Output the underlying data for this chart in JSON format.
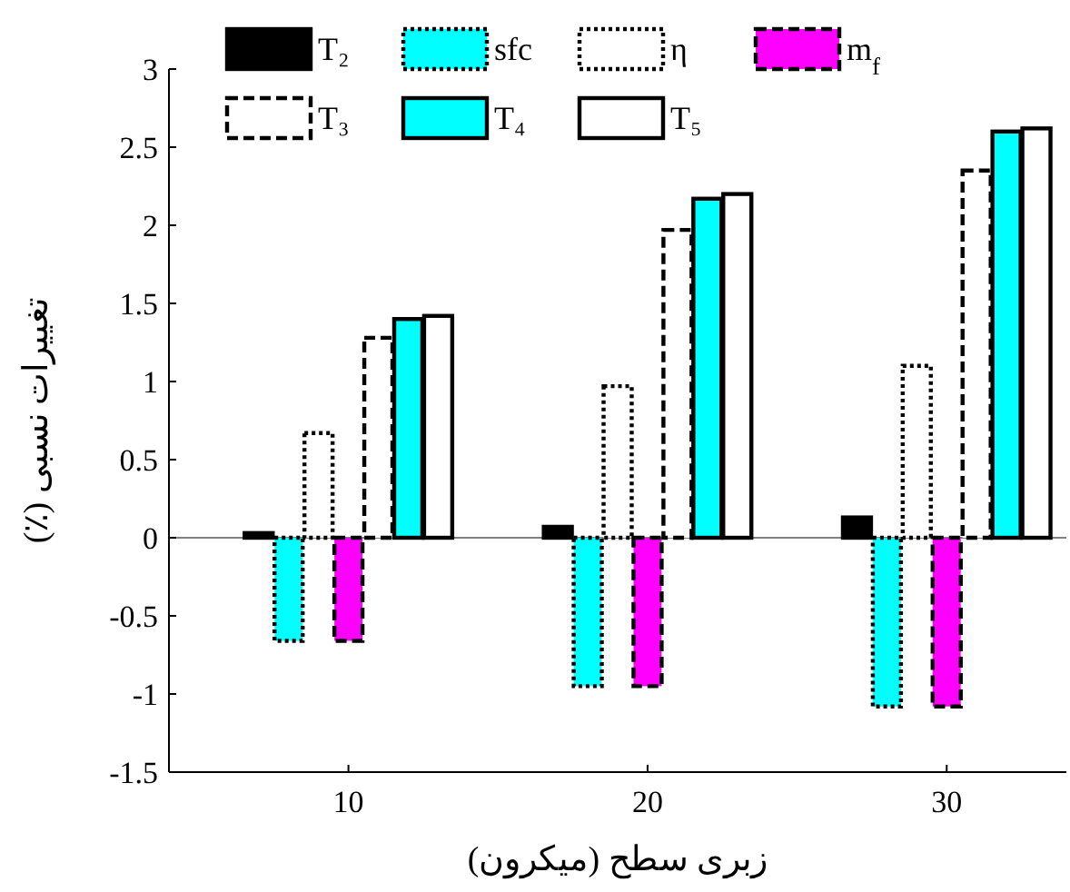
{
  "chart_data": {
    "type": "bar",
    "xlabel": "زبری سطح (میکرون)",
    "ylabel": "تغییرات نسبی (٪)",
    "x": [
      10,
      20,
      30
    ],
    "xlim": [
      4,
      34
    ],
    "xticks": [
      10,
      20,
      30
    ],
    "ylim": [
      -1.5,
      3
    ],
    "yticks": [
      -1.5,
      -1,
      -0.5,
      0,
      0.5,
      1,
      1.5,
      2,
      2.5,
      3
    ],
    "series": [
      {
        "name": "T₂",
        "color": "#000000",
        "line_style": "solid",
        "values": [
          0.03,
          0.07,
          0.13
        ]
      },
      {
        "name": "sfc",
        "color": "#00ffff",
        "line_style": "dotted",
        "values": [
          -0.66,
          -0.95,
          -1.08
        ]
      },
      {
        "name": "η",
        "color": "#ffffff",
        "line_style": "dotted",
        "values": [
          0.67,
          0.97,
          1.1
        ]
      },
      {
        "name": "m$_{f}$",
        "color": "#ff00ff",
        "line_style": "dashed",
        "values": [
          -0.66,
          -0.95,
          -1.08
        ]
      },
      {
        "name": "T₃",
        "color": "#ffffff",
        "line_style": "dashed",
        "values": [
          1.28,
          1.97,
          2.35
        ]
      },
      {
        "name": "T₄",
        "color": "#00ffff",
        "line_style": "solid",
        "values": [
          1.4,
          2.17,
          2.6
        ]
      },
      {
        "name": "T₅",
        "color": "#ffffff",
        "line_style": "solid",
        "values": [
          1.42,
          2.2,
          2.62
        ]
      }
    ],
    "ref_lines": [
      {
        "axis": "y",
        "value": 0,
        "color": "#808080"
      }
    ],
    "legend": "top",
    "grid": false
  }
}
